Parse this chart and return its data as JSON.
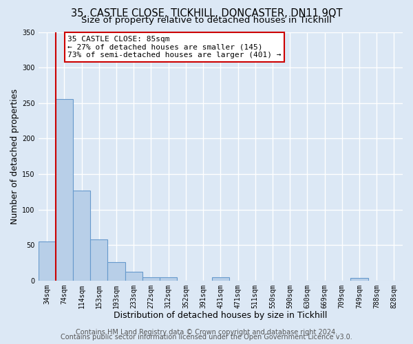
{
  "title": "35, CASTLE CLOSE, TICKHILL, DONCASTER, DN11 9QT",
  "subtitle": "Size of property relative to detached houses in Tickhill",
  "xlabel": "Distribution of detached houses by size in Tickhill",
  "ylabel": "Number of detached properties",
  "bin_labels": [
    "34sqm",
    "74sqm",
    "114sqm",
    "153sqm",
    "193sqm",
    "233sqm",
    "272sqm",
    "312sqm",
    "352sqm",
    "391sqm",
    "431sqm",
    "471sqm",
    "511sqm",
    "550sqm",
    "590sqm",
    "630sqm",
    "669sqm",
    "709sqm",
    "749sqm",
    "788sqm",
    "828sqm"
  ],
  "bar_heights": [
    55,
    256,
    127,
    58,
    26,
    12,
    5,
    5,
    0,
    0,
    5,
    0,
    0,
    0,
    0,
    0,
    0,
    0,
    4,
    0,
    0
  ],
  "bar_color": "#b8cfe8",
  "bar_edge_color": "#6699cc",
  "bar_edge_width": 0.8,
  "vline_color": "#cc0000",
  "ylim": [
    0,
    350
  ],
  "yticks": [
    0,
    50,
    100,
    150,
    200,
    250,
    300,
    350
  ],
  "annotation_title": "35 CASTLE CLOSE: 85sqm",
  "annotation_line1": "← 27% of detached houses are smaller (145)",
  "annotation_line2": "73% of semi-detached houses are larger (401) →",
  "annotation_box_facecolor": "#ffffff",
  "annotation_box_edgecolor": "#cc0000",
  "footer_line1": "Contains HM Land Registry data © Crown copyright and database right 2024.",
  "footer_line2": "Contains public sector information licensed under the Open Government Licence v3.0.",
  "background_color": "#dce8f5",
  "plot_background_color": "#dce8f5",
  "grid_color": "#ffffff",
  "title_fontsize": 10.5,
  "subtitle_fontsize": 9.5,
  "axis_label_fontsize": 9,
  "tick_fontsize": 7,
  "annotation_fontsize": 8,
  "footer_fontsize": 7
}
